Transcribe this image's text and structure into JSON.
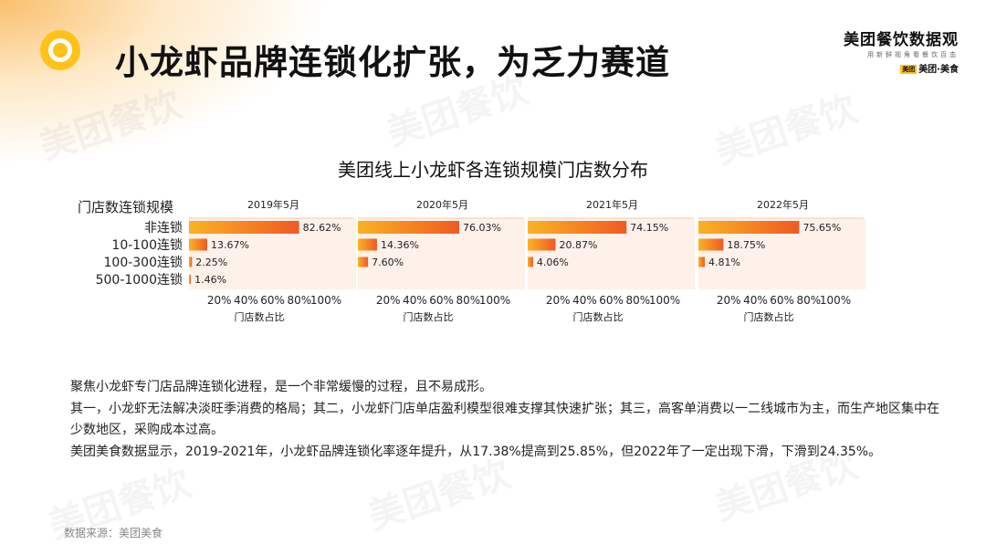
{
  "header": {
    "title": "小龙虾品牌连锁化扩张，为乏力赛道",
    "brand_name": "美团餐饮数据观",
    "brand_sub": "用新鲜视角看餐饮百态",
    "brand_box": "美团",
    "brand_tag": "美团·美食"
  },
  "watermark_text": "美团餐饮",
  "chart_data": [
    {
      "type": "bar",
      "title": "美团线上小龙虾各连锁规模门店数分布",
      "subtitle": "2019年5月",
      "categories": [
        "非连锁",
        "10-100连锁",
        "100-300连锁",
        "500-1000连锁"
      ],
      "values": [
        82.62,
        13.67,
        2.25,
        1.46
      ],
      "value_labels": [
        "82.62%",
        "13.67%",
        "2.25%",
        "1.46%"
      ],
      "xlabel": "门店数占比",
      "ylabel": "门店数连锁规模",
      "xticks": [
        "20%",
        "40%",
        "60%",
        "80%",
        "100%"
      ],
      "xlim": [
        0,
        100
      ]
    },
    {
      "type": "bar",
      "subtitle": "2020年5月",
      "categories": [
        "非连锁",
        "10-100连锁",
        "100-300连锁",
        "500-1000连锁"
      ],
      "values": [
        76.03,
        14.36,
        7.6,
        0
      ],
      "value_labels": [
        "76.03%",
        "14.36%",
        "7.60%",
        ""
      ],
      "xlabel": "门店数占比",
      "xticks": [
        "20%",
        "40%",
        "60%",
        "80%",
        "100%"
      ],
      "xlim": [
        0,
        100
      ]
    },
    {
      "type": "bar",
      "subtitle": "2021年5月",
      "categories": [
        "非连锁",
        "10-100连锁",
        "100-300连锁",
        "500-1000连锁"
      ],
      "values": [
        74.15,
        20.87,
        4.06,
        0
      ],
      "value_labels": [
        "74.15%",
        "20.87%",
        "4.06%",
        ""
      ],
      "xlabel": "门店数占比",
      "xticks": [
        "20%",
        "40%",
        "60%",
        "80%",
        "100%"
      ],
      "xlim": [
        0,
        100
      ]
    },
    {
      "type": "bar",
      "subtitle": "2022年5月",
      "categories": [
        "非连锁",
        "10-100连锁",
        "100-300连锁",
        "500-1000连锁"
      ],
      "values": [
        75.65,
        18.75,
        4.81,
        0
      ],
      "value_labels": [
        "75.65%",
        "18.75%",
        "4.81%",
        ""
      ],
      "xlabel": "门店数占比",
      "xticks": [
        "20%",
        "40%",
        "60%",
        "80%",
        "100%"
      ],
      "xlim": [
        0,
        100
      ]
    }
  ],
  "body": [
    "聚焦小龙虾专门店品牌连锁化进程，是一个非常缓慢的过程，且不易成形。",
    "其一，小龙虾无法解决淡旺季消费的格局；其二，小龙虾门店单店盈利模型很难支撑其快速扩张；其三，高客单消费以一二线城市为主，而生产地区集中在少数地区，采购成本过高。",
    "美团美食数据显示，2019-2021年，小龙虾品牌连锁化率逐年提升，从17.38%提高到25.85%，但2022年了一定出现下滑，下滑到24.35%。"
  ],
  "source": "数据来源：美团美食",
  "colors": {
    "bar_start": "#fbb224",
    "bar_end": "#ef5a24",
    "panel_bg": "#fdf1ea",
    "logo": "#ffc21a"
  }
}
